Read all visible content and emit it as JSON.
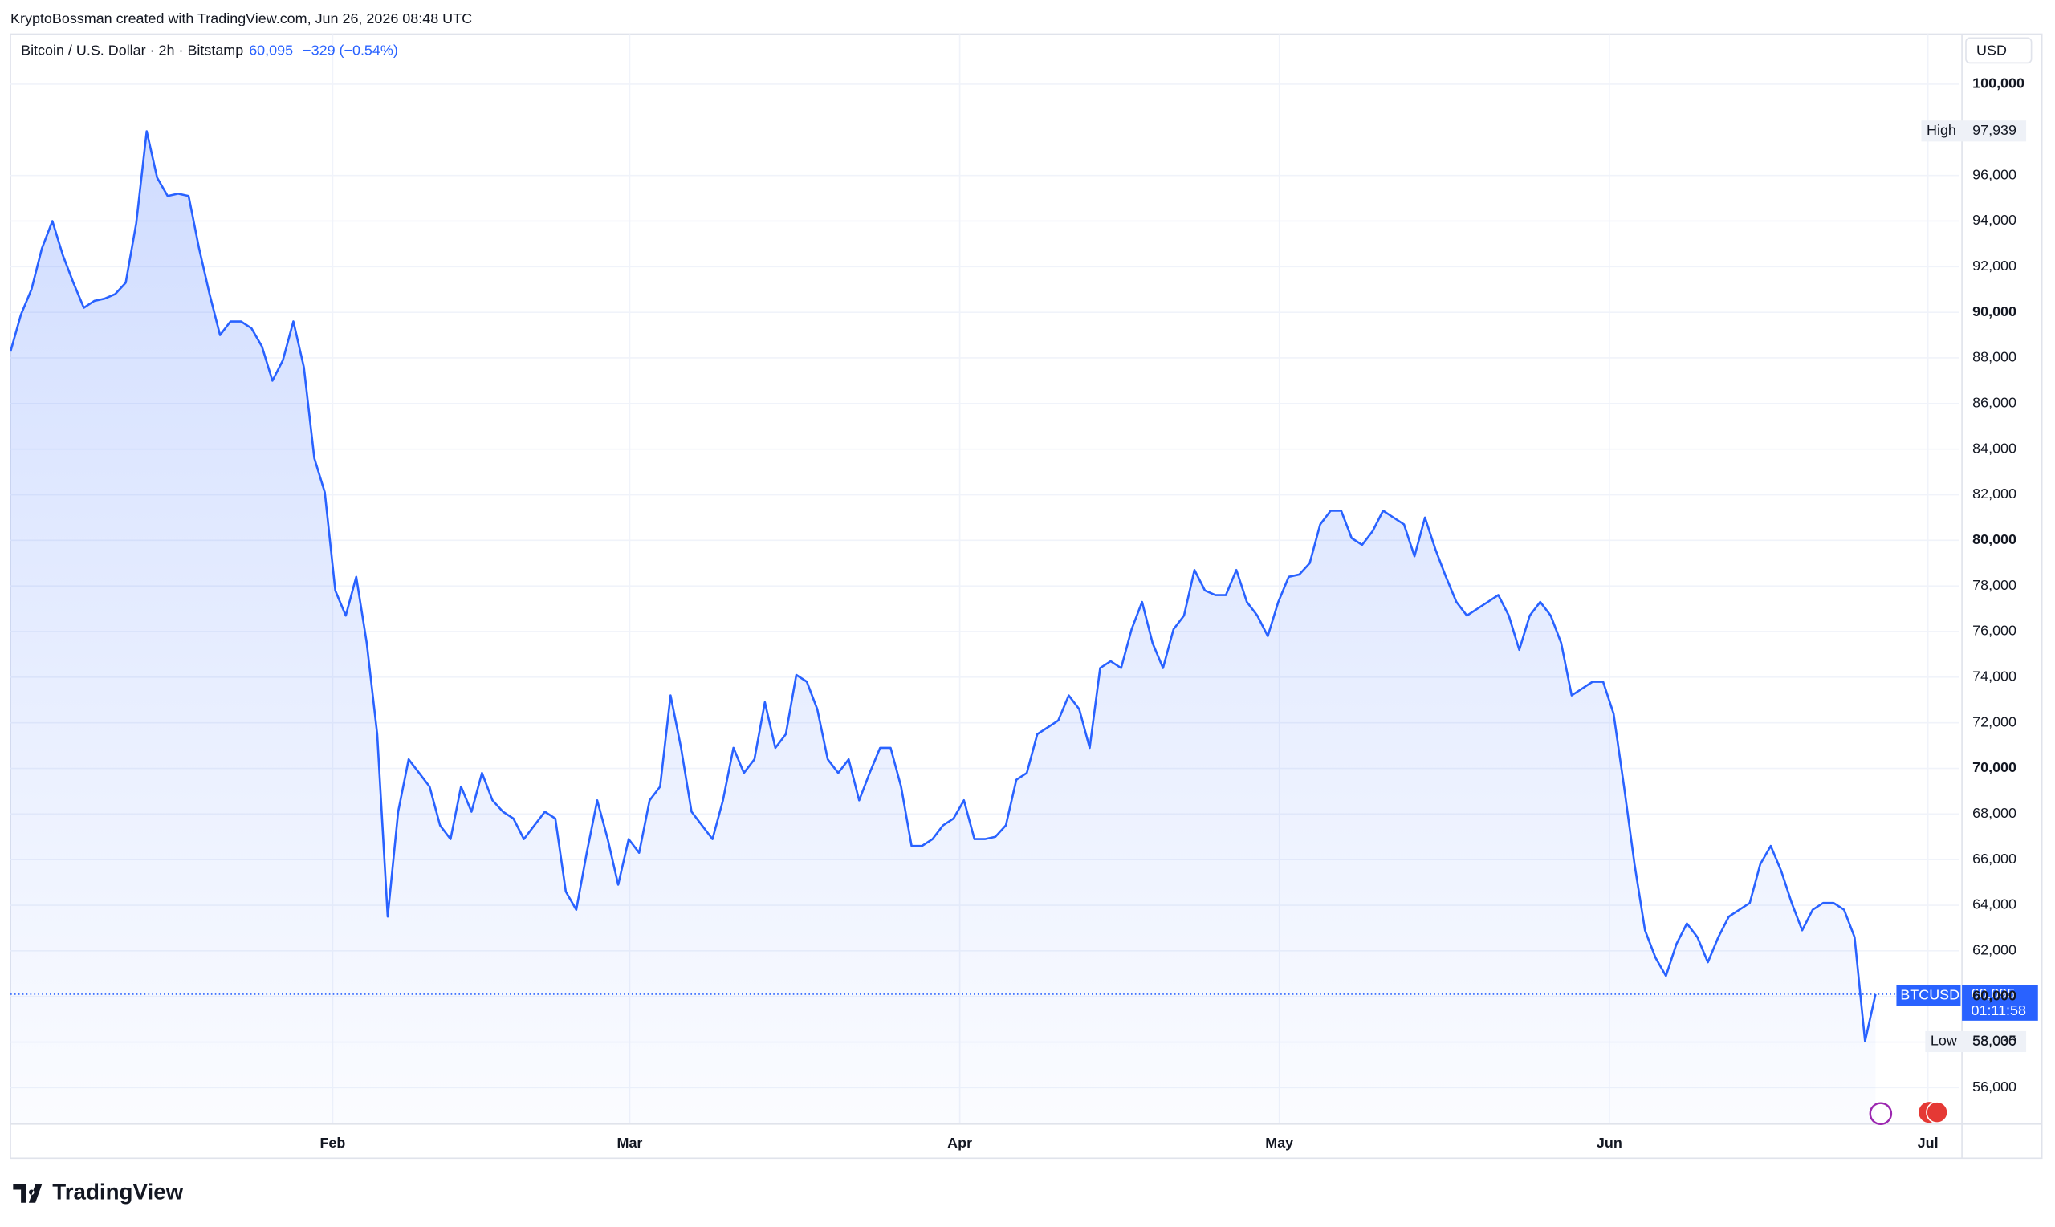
{
  "chart_data": {
    "type": "line",
    "credit": "KryptoBossman created with TradingView.com, Jun 26, 2026 08:48 UTC",
    "title": "Bitcoin / U.S. Dollar · 2h · Bitstamp",
    "last_price": "60,095",
    "change": "−329 (−0.54%)",
    "currency": "USD",
    "symbol": "BTCUSD",
    "countdown": "01:11:58",
    "high_label": "High",
    "high_value": "97,939",
    "low_label": "Low",
    "low_value": "58,035",
    "brand": "TradingView",
    "series": [
      {
        "name": "BTCUSD",
        "color": "#2962ff",
        "values": [
          88280,
          89900,
          91000,
          92800,
          94000,
          92500,
          91300,
          90200,
          90500,
          90600,
          90800,
          91300,
          93900,
          97939,
          95900,
          95100,
          95200,
          95100,
          92800,
          90800,
          89000,
          89600,
          89600,
          89300,
          88500,
          87000,
          87900,
          89600,
          87600,
          83600,
          82100,
          77800,
          76700,
          78400,
          75500,
          71500,
          63500,
          68100,
          70400,
          69800,
          69200,
          67500,
          66900,
          69200,
          68100,
          69800,
          68600,
          68100,
          67800,
          66900,
          67500,
          68100,
          67800,
          64600,
          63800,
          66300,
          68600,
          66900,
          64900,
          66900,
          66300,
          68600,
          69200,
          73200,
          70900,
          68100,
          67500,
          66900,
          68600,
          70900,
          69800,
          70400,
          72900,
          70900,
          71500,
          74100,
          73800,
          72600,
          70400,
          69800,
          70400,
          68600,
          69800,
          70900,
          70900,
          69200,
          66600,
          66600,
          66900,
          67500,
          67800,
          68600,
          66900,
          66900,
          67000,
          67500,
          69500,
          69800,
          71500,
          71800,
          72100,
          73200,
          72600,
          70900,
          74400,
          74700,
          74400,
          76100,
          77300,
          75500,
          74400,
          76100,
          76700,
          78700,
          77800,
          77600,
          77600,
          78700,
          77300,
          76700,
          75800,
          77300,
          78400,
          78500,
          79000,
          80700,
          81300,
          81300,
          80100,
          79800,
          80400,
          81300,
          81000,
          80700,
          79300,
          81000,
          79600,
          78400,
          77300,
          76700,
          77000,
          77300,
          77600,
          76700,
          75200,
          76700,
          77300,
          76700,
          75500,
          73200,
          73500,
          73800,
          73800,
          72400,
          69200,
          65800,
          62900,
          61700,
          60900,
          62300,
          63200,
          62600,
          61500,
          62600,
          63500,
          63800,
          64100,
          65800,
          66600,
          65500,
          64100,
          62900,
          63800,
          64100,
          64100,
          63800,
          62600,
          58035,
          60095
        ]
      }
    ],
    "xlim": [
      0,
      186
    ],
    "xticks": [
      {
        "value": 30.75,
        "label": "Feb"
      },
      {
        "value": 59.1,
        "label": "Mar"
      },
      {
        "value": 90.6,
        "label": "Apr"
      },
      {
        "value": 121.1,
        "label": "May"
      },
      {
        "value": 152.6,
        "label": "Jun"
      },
      {
        "value": 183,
        "label": "Jul"
      }
    ],
    "ylim": [
      54400,
      102200
    ],
    "yticks": [
      {
        "value": 56000,
        "label": "56,000"
      },
      {
        "value": 58000,
        "label": "58,000"
      },
      {
        "value": 60000,
        "label": "60,000"
      },
      {
        "value": 62000,
        "label": "62,000"
      },
      {
        "value": 64000,
        "label": "64,000"
      },
      {
        "value": 66000,
        "label": "66,000"
      },
      {
        "value": 68000,
        "label": "68,000"
      },
      {
        "value": 70000,
        "label": "70,000"
      },
      {
        "value": 72000,
        "label": "72,000"
      },
      {
        "value": 74000,
        "label": "74,000"
      },
      {
        "value": 76000,
        "label": "76,000"
      },
      {
        "value": 78000,
        "label": "78,000"
      },
      {
        "value": 80000,
        "label": "80,000"
      },
      {
        "value": 82000,
        "label": "82,000"
      },
      {
        "value": 84000,
        "label": "84,000"
      },
      {
        "value": 86000,
        "label": "86,000"
      },
      {
        "value": 88000,
        "label": "88,000"
      },
      {
        "value": 90000,
        "label": "90,000"
      },
      {
        "value": 92000,
        "label": "92,000"
      },
      {
        "value": 94000,
        "label": "94,000"
      },
      {
        "value": 96000,
        "label": "96,000"
      },
      {
        "value": 100000,
        "label": "100,000"
      }
    ],
    "grid": true
  }
}
